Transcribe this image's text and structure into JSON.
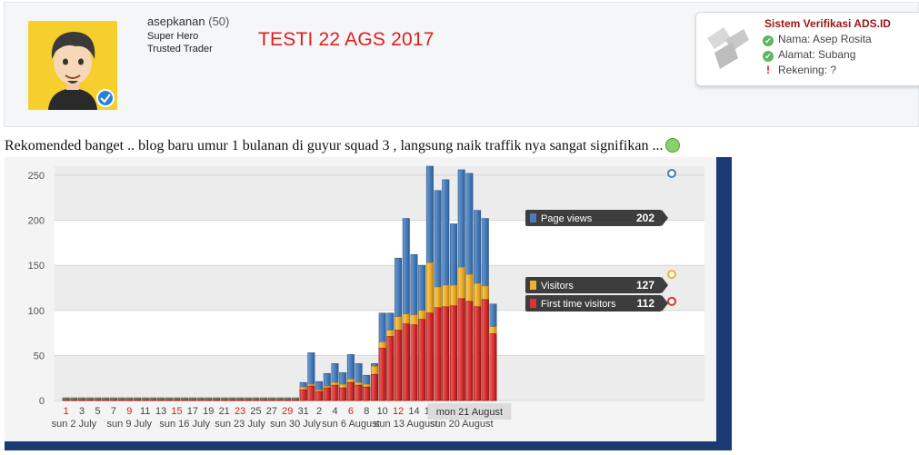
{
  "user": {
    "name": "asepkanan",
    "count": "(50)",
    "title1": "Super Hero",
    "title2": "Trusted Trader"
  },
  "post": {
    "title": "TESTI 22 AGS 2017",
    "body": "Rekomended banget .. blog baru umur 1 bulanan di guyur squad 3 , langsung naik traffik nya sangat signifikan ..."
  },
  "verification": {
    "title": "Sistem Verifikasi ADS.ID",
    "items": [
      {
        "icon": "check-icon",
        "text": "Nama: Asep Rosita"
      },
      {
        "icon": "check-icon",
        "text": "Alamat: Subang"
      },
      {
        "icon": "exclamation-icon",
        "text": "Rekening: ?"
      }
    ]
  },
  "chart_data": {
    "type": "bar",
    "ylim": [
      0,
      260
    ],
    "yticks": [
      0,
      50,
      100,
      150,
      200,
      250
    ],
    "x_day_labels": [
      {
        "day": 0,
        "text": "1",
        "weekend": true
      },
      {
        "day": 2,
        "text": "3",
        "weekend": false
      },
      {
        "day": 4,
        "text": "5",
        "weekend": false
      },
      {
        "day": 6,
        "text": "7",
        "weekend": false
      },
      {
        "day": 8,
        "text": "9",
        "weekend": true
      },
      {
        "day": 10,
        "text": "11",
        "weekend": false
      },
      {
        "day": 12,
        "text": "13",
        "weekend": false
      },
      {
        "day": 14,
        "text": "15",
        "weekend": true
      },
      {
        "day": 16,
        "text": "17",
        "weekend": false
      },
      {
        "day": 18,
        "text": "19",
        "weekend": false
      },
      {
        "day": 20,
        "text": "21",
        "weekend": false
      },
      {
        "day": 22,
        "text": "23",
        "weekend": true
      },
      {
        "day": 24,
        "text": "25",
        "weekend": false
      },
      {
        "day": 26,
        "text": "27",
        "weekend": false
      },
      {
        "day": 28,
        "text": "29",
        "weekend": true
      },
      {
        "day": 30,
        "text": "31",
        "weekend": false
      },
      {
        "day": 32,
        "text": "2",
        "weekend": false
      },
      {
        "day": 34,
        "text": "4",
        "weekend": false
      },
      {
        "day": 36,
        "text": "6",
        "weekend": true
      },
      {
        "day": 38,
        "text": "8",
        "weekend": false
      },
      {
        "day": 40,
        "text": "10",
        "weekend": false
      },
      {
        "day": 42,
        "text": "12",
        "weekend": true
      },
      {
        "day": 44,
        "text": "14",
        "weekend": false
      },
      {
        "day": 46,
        "text": "16",
        "weekend": false
      }
    ],
    "week_labels": [
      {
        "day": 1,
        "text": "sun 2 July"
      },
      {
        "day": 8,
        "text": "sun 9 July"
      },
      {
        "day": 15,
        "text": "sun 16 July"
      },
      {
        "day": 22,
        "text": "sun 23 July"
      },
      {
        "day": 29,
        "text": "sun 30 July"
      },
      {
        "day": 36,
        "text": "sun 6 August"
      },
      {
        "day": 43,
        "text": "sun 13 August"
      },
      {
        "day": 50,
        "text": "sun 20 August"
      }
    ],
    "hover_label": {
      "day": 51,
      "text": "mon 21 August"
    },
    "series": [
      {
        "name": "Page views",
        "color": "#4a7ebb",
        "values": [
          3,
          3,
          3,
          3,
          3,
          3,
          3,
          3,
          3,
          3,
          3,
          3,
          3,
          3,
          3,
          3,
          3,
          3,
          3,
          3,
          3,
          3,
          3,
          3,
          3,
          3,
          3,
          3,
          3,
          3,
          20,
          53,
          21,
          30,
          41,
          31,
          51,
          41,
          28,
          41,
          97,
          97,
          158,
          202,
          162,
          150,
          260,
          233,
          245,
          196,
          256,
          252,
          211,
          202,
          107
        ]
      },
      {
        "name": "Visitors",
        "color": "#f0b030",
        "values": [
          2,
          2,
          2,
          2,
          2,
          2,
          2,
          2,
          2,
          2,
          2,
          2,
          2,
          2,
          2,
          2,
          2,
          2,
          2,
          2,
          2,
          2,
          2,
          2,
          2,
          2,
          2,
          2,
          2,
          2,
          15,
          18,
          12,
          16,
          20,
          18,
          24,
          20,
          18,
          38,
          65,
          78,
          93,
          96,
          95,
          100,
          153,
          126,
          128,
          128,
          148,
          140,
          130,
          127,
          82
        ]
      },
      {
        "name": "First time visitors",
        "color": "#dd3333",
        "values": [
          1,
          1,
          1,
          1,
          1,
          1,
          1,
          1,
          1,
          1,
          1,
          1,
          1,
          1,
          1,
          1,
          1,
          1,
          1,
          1,
          1,
          1,
          1,
          1,
          1,
          1,
          1,
          1,
          1,
          1,
          12,
          16,
          10,
          14,
          17,
          14,
          20,
          17,
          15,
          29,
          58,
          71,
          78,
          85,
          84,
          90,
          97,
          103,
          104,
          105,
          113,
          110,
          104,
          112,
          74
        ]
      }
    ],
    "tooltips": [
      {
        "name": "Page views",
        "value": "202"
      },
      {
        "name": "Visitors",
        "value": "127"
      },
      {
        "name": "First time visitors",
        "value": "112"
      }
    ]
  }
}
